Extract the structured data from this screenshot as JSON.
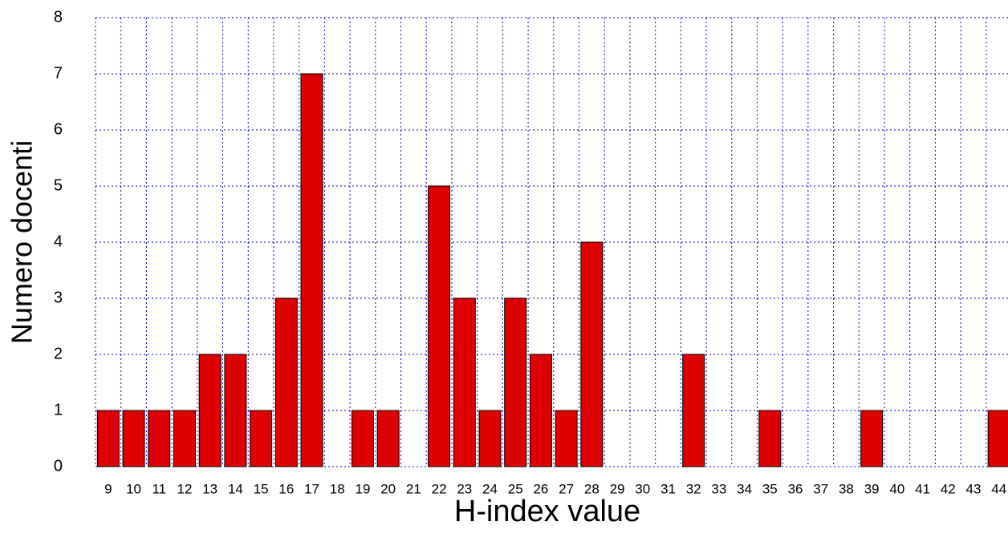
{
  "chart_data": {
    "type": "bar",
    "x_label": "H-index value",
    "y_label": "Numero docenti",
    "categories": [
      "9",
      "10",
      "11",
      "12",
      "13",
      "14",
      "15",
      "16",
      "17",
      "18",
      "19",
      "20",
      "21",
      "22",
      "23",
      "24",
      "25",
      "26",
      "27",
      "28",
      "29",
      "30",
      "31",
      "32",
      "33",
      "34",
      "35",
      "36",
      "37",
      "38",
      "39",
      "40",
      "41",
      "42",
      "43",
      "44"
    ],
    "values": [
      1,
      1,
      1,
      1,
      2,
      2,
      1,
      3,
      7,
      0,
      1,
      1,
      0,
      5,
      3,
      1,
      3,
      2,
      1,
      4,
      0,
      0,
      0,
      2,
      0,
      0,
      1,
      0,
      0,
      0,
      1,
      0,
      0,
      0,
      0,
      1
    ],
    "color": "#dd0000",
    "ylim": [
      0,
      8
    ],
    "yticks": [
      0,
      1,
      2,
      3,
      4,
      5,
      6,
      7,
      8
    ],
    "grid": true
  }
}
